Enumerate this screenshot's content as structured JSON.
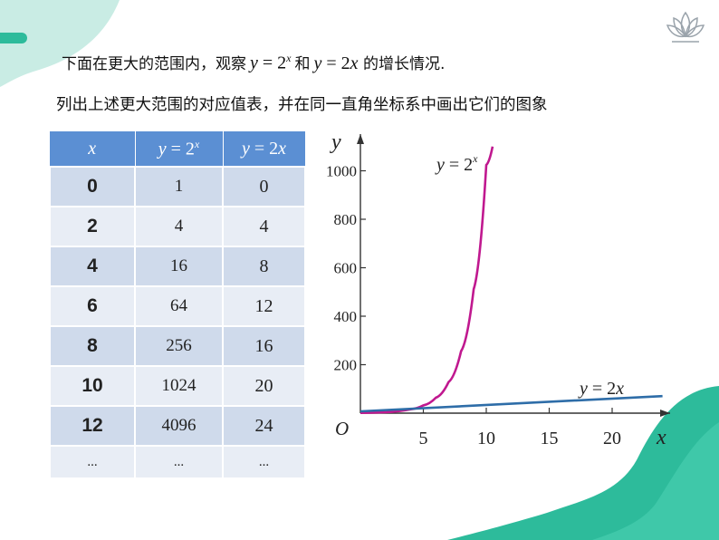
{
  "intro": {
    "prefix": "下面在更大的范围内，观察",
    "func1": {
      "lhs": "y",
      "eq": " = ",
      "base": "2",
      "exp": "x"
    },
    "conj": "和",
    "func2": {
      "lhs": "y",
      "eq": " = ",
      "rhs": "2x"
    },
    "suffix": " 的增长情况."
  },
  "instruction": "列出上述更大范围的对应值表，并在同一直角坐标系中画出它们的图象",
  "table": {
    "headers": {
      "x": "x",
      "col1": {
        "lhs": "y",
        "eq": " = ",
        "base": "2",
        "exp": "x"
      },
      "col2": {
        "lhs": "y",
        "eq": " = ",
        "rhs": "2x"
      }
    },
    "rows": [
      {
        "x": "0",
        "exp": "1",
        "lin": "0"
      },
      {
        "x": "2",
        "exp": "4",
        "lin": "4"
      },
      {
        "x": "4",
        "exp": "16",
        "lin": "8"
      },
      {
        "x": "6",
        "exp": "64",
        "lin": "12"
      },
      {
        "x": "8",
        "exp": "256",
        "lin": "16"
      },
      {
        "x": "10",
        "exp": "1024",
        "lin": "20"
      },
      {
        "x": "12",
        "exp": "4096",
        "lin": "24"
      },
      {
        "x": "...",
        "exp": "...",
        "lin": "..."
      }
    ]
  },
  "chart_data": {
    "type": "line",
    "xlabel": "x",
    "ylabel": "y",
    "origin_label": "O",
    "xlim": [
      0,
      25
    ],
    "ylim": [
      0,
      1130
    ],
    "x_ticks": [
      5,
      10,
      15,
      20
    ],
    "y_ticks": [
      200,
      400,
      600,
      800,
      1000
    ],
    "grid": false,
    "series": [
      {
        "name": "y = 2^x",
        "label": {
          "lhs": "y",
          "eq": " = ",
          "base": "2",
          "exp": "x"
        },
        "color": "#c0188f",
        "points": [
          [
            0,
            1
          ],
          [
            2,
            4
          ],
          [
            4,
            16
          ],
          [
            5,
            32
          ],
          [
            6,
            64
          ],
          [
            7,
            128
          ],
          [
            8,
            256
          ],
          [
            9,
            512
          ],
          [
            10,
            1024
          ],
          [
            10.5,
            1100
          ]
        ]
      },
      {
        "name": "y = 2x",
        "label": {
          "lhs": "y",
          "eq": " = ",
          "rhs": "2x"
        },
        "color": "#2e6da8",
        "points": [
          [
            0,
            0
          ],
          [
            24,
            48
          ]
        ]
      }
    ]
  },
  "colors": {
    "header_blue": "#5b8fd3",
    "teal": "#2dbb9b",
    "mint": "#c9ece4"
  }
}
